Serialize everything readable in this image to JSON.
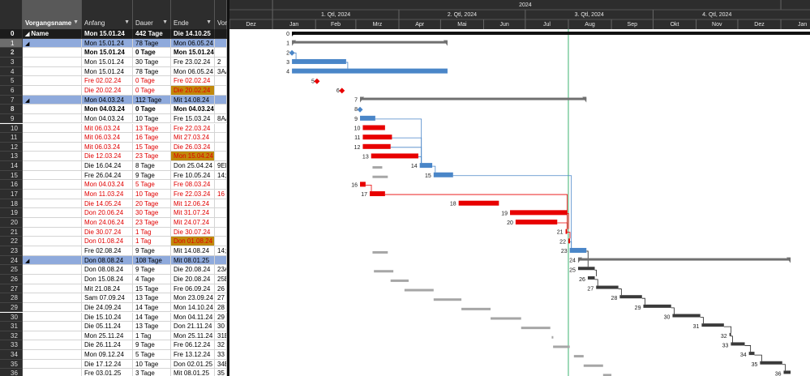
{
  "grid": {
    "columns": {
      "id": "",
      "name": "Vorgangsname",
      "start": "Anfang",
      "duration": "Dauer",
      "end": "Ende",
      "pred": "Vor"
    },
    "rows": [
      {
        "id": "0",
        "name": "Name",
        "start": "Mon 15.01.24",
        "duration": "442 Tage",
        "end": "Die 14.10.25",
        "pred": "",
        "style": "top"
      },
      {
        "id": "1",
        "name": "",
        "start": "Mon 15.01.24",
        "duration": "78 Tage",
        "end": "Mon 06.05.24",
        "pred": "",
        "style": "sum sel"
      },
      {
        "id": "2",
        "name": "",
        "start": "Mon 15.01.24",
        "duration": "0 Tage",
        "end": "Mon 15.01.24",
        "pred": "",
        "style": "bold"
      },
      {
        "id": "3",
        "name": "",
        "start": "Mon 15.01.24",
        "duration": "30 Tage",
        "end": "Fre 23.02.24",
        "pred": "2",
        "style": ""
      },
      {
        "id": "4",
        "name": "",
        "start": "Mon 15.01.24",
        "duration": "78 Tage",
        "end": "Mon 06.05.24",
        "pred": "3AA",
        "style": ""
      },
      {
        "id": "5",
        "name": "",
        "start": "Fre 02.02.24",
        "duration": "0 Tage",
        "end": "Fre 02.02.24",
        "pred": "",
        "style": "red"
      },
      {
        "id": "6",
        "name": "",
        "start": "Die 20.02.24",
        "duration": "0 Tage",
        "end": "Die 20.02.24",
        "pred": "",
        "style": "red",
        "hl": true
      },
      {
        "id": "7",
        "name": "",
        "start": "Mon 04.03.24",
        "duration": "112 Tage",
        "end": "Mit 14.08.24",
        "pred": "",
        "style": "sum"
      },
      {
        "id": "8",
        "name": "",
        "start": "Mon 04.03.24",
        "duration": "0 Tage",
        "end": "Mon 04.03.24",
        "pred": "",
        "style": "bold"
      },
      {
        "id": "9",
        "name": "",
        "start": "Mon 04.03.24",
        "duration": "10 Tage",
        "end": "Fre 15.03.24",
        "pred": "8AA",
        "style": ""
      },
      {
        "id": "10",
        "name": "",
        "start": "Mit 06.03.24",
        "duration": "13 Tage",
        "end": "Fre 22.03.24",
        "pred": "",
        "style": "red"
      },
      {
        "id": "11",
        "name": "",
        "start": "Mit 06.03.24",
        "duration": "16 Tage",
        "end": "Mit 27.03.24",
        "pred": "",
        "style": "red"
      },
      {
        "id": "12",
        "name": "",
        "start": "Mit 06.03.24",
        "duration": "15 Tage",
        "end": "Die 26.03.24",
        "pred": "",
        "style": "red"
      },
      {
        "id": "13",
        "name": "",
        "start": "Die 12.03.24",
        "duration": "23 Tage",
        "end": "Mon 15.04.24",
        "pred": "",
        "style": "red",
        "hl": true
      },
      {
        "id": "14",
        "name": "",
        "start": "Die 16.04.24",
        "duration": "8 Tage",
        "end": "Don 25.04.24",
        "pred": "9EE",
        "style": ""
      },
      {
        "id": "15",
        "name": "",
        "start": "Fre 26.04.24",
        "duration": "9 Tage",
        "end": "Fre 10.05.24",
        "pred": "14;1",
        "style": ""
      },
      {
        "id": "16",
        "name": "",
        "start": "Mon 04.03.24",
        "duration": "5 Tage",
        "end": "Fre 08.03.24",
        "pred": "",
        "style": "red"
      },
      {
        "id": "17",
        "name": "",
        "start": "Mon 11.03.24",
        "duration": "10 Tage",
        "end": "Fre 22.03.24",
        "pred": "16",
        "style": "red"
      },
      {
        "id": "18",
        "name": "",
        "start": "Die 14.05.24",
        "duration": "20 Tage",
        "end": "Mit 12.06.24",
        "pred": "",
        "style": "red"
      },
      {
        "id": "19",
        "name": "",
        "start": "Don 20.06.24",
        "duration": "30 Tage",
        "end": "Mit 31.07.24",
        "pred": "",
        "style": "red"
      },
      {
        "id": "20",
        "name": "",
        "start": "Mon 24.06.24",
        "duration": "23 Tage",
        "end": "Mit 24.07.24",
        "pred": "",
        "style": "red"
      },
      {
        "id": "21",
        "name": "",
        "start": "Die 30.07.24",
        "duration": "1 Tag",
        "end": "Die 30.07.24",
        "pred": "",
        "style": "red"
      },
      {
        "id": "22",
        "name": "",
        "start": "Don 01.08.24",
        "duration": "1 Tag",
        "end": "Don 01.08.24",
        "pred": "",
        "style": "red",
        "hl": true
      },
      {
        "id": "23",
        "name": "",
        "start": "Fre 02.08.24",
        "duration": "9 Tage",
        "end": "Mit 14.08.24",
        "pred": "14;1",
        "style": ""
      },
      {
        "id": "24",
        "name": "",
        "start": "Don 08.08.24",
        "duration": "108 Tage",
        "end": "Mit 08.01.25",
        "pred": "",
        "style": "sum"
      },
      {
        "id": "25",
        "name": "",
        "start": "Don 08.08.24",
        "duration": "9 Tage",
        "end": "Die 20.08.24",
        "pred": "23A",
        "style": ""
      },
      {
        "id": "26",
        "name": "",
        "start": "Don 15.08.24",
        "duration": "4 Tage",
        "end": "Die 20.08.24",
        "pred": "25E",
        "style": ""
      },
      {
        "id": "27",
        "name": "",
        "start": "Mit 21.08.24",
        "duration": "15 Tage",
        "end": "Fre 06.09.24",
        "pred": "26",
        "style": ""
      },
      {
        "id": "28",
        "name": "",
        "start": "Sam 07.09.24",
        "duration": "13 Tage",
        "end": "Mon 23.09.24",
        "pred": "27",
        "style": ""
      },
      {
        "id": "29",
        "name": "",
        "start": "Die 24.09.24",
        "duration": "14 Tage",
        "end": "Mon 14.10.24",
        "pred": "28",
        "style": ""
      },
      {
        "id": "30",
        "name": "",
        "start": "Die 15.10.24",
        "duration": "14 Tage",
        "end": "Mon 04.11.24",
        "pred": "29",
        "style": ""
      },
      {
        "id": "31",
        "name": "",
        "start": "Die 05.11.24",
        "duration": "13 Tage",
        "end": "Don 21.11.24",
        "pred": "30",
        "style": ""
      },
      {
        "id": "32",
        "name": "",
        "start": "Mon 25.11.24",
        "duration": "1 Tag",
        "end": "Mon 25.11.24",
        "pred": "31E",
        "style": ""
      },
      {
        "id": "33",
        "name": "",
        "start": "Die 26.11.24",
        "duration": "9 Tage",
        "end": "Fre 06.12.24",
        "pred": "32",
        "style": ""
      },
      {
        "id": "34",
        "name": "",
        "start": "Mon 09.12.24",
        "duration": "5 Tage",
        "end": "Fre 13.12.24",
        "pred": "33",
        "style": ""
      },
      {
        "id": "35",
        "name": "",
        "start": "Die 17.12.24",
        "duration": "10 Tage",
        "end": "Don 02.01.25",
        "pred": "34E",
        "style": ""
      },
      {
        "id": "36",
        "name": "",
        "start": "Fre 03.01.25",
        "duration": "3 Tage",
        "end": "Mit 08.01.25",
        "pred": "35",
        "style": ""
      }
    ]
  },
  "timeline": {
    "year": "2024",
    "quarters": [
      "1. Qtl, 2024",
      "2. Qtl, 2024",
      "3. Qtl, 2024",
      "4. Qtl, 2024"
    ],
    "months": [
      "Dez",
      "Jan",
      "Feb",
      "Mrz",
      "Apr",
      "Mai",
      "Jun",
      "Jul",
      "Aug",
      "Sep",
      "Okt",
      "Nov",
      "Dez",
      "Jan"
    ],
    "status_date": "2024-08-01"
  },
  "colors": {
    "critical": "#e80000",
    "normal": "#4a86c8",
    "summary": "#707070",
    "future": "#a6a6a6",
    "dark_task": "#3a3a3a",
    "status_line": "#3cb371",
    "header_bg": "#2d2d2d",
    "summary_row": "#8faadc",
    "highlight": "#c0890c"
  },
  "chart_data": {
    "type": "gantt",
    "timeline_range": [
      "2023-12-01",
      "2025-01-31"
    ],
    "tasks": [
      {
        "id": 0,
        "kind": "project",
        "start": "2024-01-15",
        "end": "2025-10-14"
      },
      {
        "id": 1,
        "kind": "summary",
        "start": "2024-01-15",
        "end": "2024-05-06"
      },
      {
        "id": 2,
        "kind": "milestone",
        "start": "2024-01-15",
        "color": "normal"
      },
      {
        "id": 3,
        "kind": "task",
        "start": "2024-01-15",
        "end": "2024-02-23",
        "color": "normal"
      },
      {
        "id": 4,
        "kind": "task",
        "start": "2024-01-15",
        "end": "2024-05-06",
        "color": "normal"
      },
      {
        "id": 5,
        "kind": "milestone",
        "start": "2024-02-02",
        "color": "critical"
      },
      {
        "id": 6,
        "kind": "milestone",
        "start": "2024-02-20",
        "color": "critical"
      },
      {
        "id": 7,
        "kind": "summary",
        "start": "2024-03-04",
        "end": "2024-08-14"
      },
      {
        "id": 8,
        "kind": "milestone",
        "start": "2024-03-04",
        "color": "normal"
      },
      {
        "id": 9,
        "kind": "task",
        "start": "2024-03-04",
        "end": "2024-03-15",
        "color": "normal"
      },
      {
        "id": 10,
        "kind": "task",
        "start": "2024-03-06",
        "end": "2024-03-22",
        "color": "critical"
      },
      {
        "id": 11,
        "kind": "task",
        "start": "2024-03-06",
        "end": "2024-03-27",
        "color": "critical"
      },
      {
        "id": 12,
        "kind": "task",
        "start": "2024-03-06",
        "end": "2024-03-26",
        "color": "critical"
      },
      {
        "id": 13,
        "kind": "task",
        "start": "2024-03-12",
        "end": "2024-04-15",
        "color": "critical"
      },
      {
        "id": 14,
        "kind": "task",
        "start": "2024-04-16",
        "end": "2024-04-25",
        "color": "normal"
      },
      {
        "id": 15,
        "kind": "task",
        "start": "2024-04-26",
        "end": "2024-05-10",
        "color": "normal"
      },
      {
        "id": 16,
        "kind": "task",
        "start": "2024-03-04",
        "end": "2024-03-08",
        "color": "critical"
      },
      {
        "id": 17,
        "kind": "task",
        "start": "2024-03-11",
        "end": "2024-03-22",
        "color": "critical"
      },
      {
        "id": 18,
        "kind": "task",
        "start": "2024-05-14",
        "end": "2024-06-12",
        "color": "critical"
      },
      {
        "id": 19,
        "kind": "task",
        "start": "2024-06-20",
        "end": "2024-07-31",
        "color": "critical"
      },
      {
        "id": 20,
        "kind": "task",
        "start": "2024-06-24",
        "end": "2024-07-24",
        "color": "critical"
      },
      {
        "id": 21,
        "kind": "task",
        "start": "2024-07-30",
        "end": "2024-07-31",
        "color": "critical"
      },
      {
        "id": 22,
        "kind": "task",
        "start": "2024-08-01",
        "end": "2024-08-02",
        "color": "critical"
      },
      {
        "id": 23,
        "kind": "task",
        "start": "2024-08-02",
        "end": "2024-08-14",
        "color": "normal"
      },
      {
        "id": 24,
        "kind": "summary",
        "start": "2024-08-08",
        "end": "2025-01-08"
      },
      {
        "id": 25,
        "kind": "task",
        "start": "2024-08-08",
        "end": "2024-08-20",
        "color": "dark_task"
      },
      {
        "id": 26,
        "kind": "task",
        "start": "2024-08-15",
        "end": "2024-08-20",
        "color": "dark_task"
      },
      {
        "id": 27,
        "kind": "task",
        "start": "2024-08-21",
        "end": "2024-09-06",
        "color": "dark_task"
      },
      {
        "id": 28,
        "kind": "task",
        "start": "2024-09-07",
        "end": "2024-09-23",
        "color": "dark_task"
      },
      {
        "id": 29,
        "kind": "task",
        "start": "2024-09-24",
        "end": "2024-10-14",
        "color": "dark_task"
      },
      {
        "id": 30,
        "kind": "task",
        "start": "2024-10-15",
        "end": "2024-11-04",
        "color": "dark_task"
      },
      {
        "id": 31,
        "kind": "task",
        "start": "2024-11-05",
        "end": "2024-11-21",
        "color": "dark_task"
      },
      {
        "id": 32,
        "kind": "task",
        "start": "2024-11-25",
        "end": "2024-11-26",
        "color": "dark_task"
      },
      {
        "id": 33,
        "kind": "task",
        "start": "2024-11-26",
        "end": "2024-12-06",
        "color": "dark_task"
      },
      {
        "id": 34,
        "kind": "task",
        "start": "2024-12-09",
        "end": "2024-12-13",
        "color": "dark_task"
      },
      {
        "id": 35,
        "kind": "task",
        "start": "2024-12-17",
        "end": "2025-01-02",
        "color": "dark_task"
      },
      {
        "id": 36,
        "kind": "task",
        "start": "2025-01-03",
        "end": "2025-01-08",
        "color": "dark_task"
      }
    ],
    "baselines": [
      {
        "id": 14,
        "start": "2024-03-13",
        "end": "2024-03-20"
      },
      {
        "id": 15,
        "start": "2024-03-13",
        "end": "2024-03-24"
      },
      {
        "id": 23,
        "start": "2024-03-13",
        "end": "2024-03-24"
      },
      {
        "id": 25,
        "start": "2024-03-14",
        "end": "2024-03-28"
      },
      {
        "id": 26,
        "start": "2024-03-26",
        "end": "2024-04-08"
      },
      {
        "id": 27,
        "start": "2024-04-05",
        "end": "2024-04-26"
      },
      {
        "id": 28,
        "start": "2024-04-26",
        "end": "2024-05-16"
      },
      {
        "id": 29,
        "start": "2024-05-16",
        "end": "2024-06-06"
      },
      {
        "id": 30,
        "start": "2024-06-06",
        "end": "2024-06-28"
      },
      {
        "id": 31,
        "start": "2024-06-28",
        "end": "2024-07-19"
      },
      {
        "id": 32,
        "start": "2024-07-20",
        "end": "2024-07-21"
      },
      {
        "id": 33,
        "start": "2024-07-21",
        "end": "2024-08-02"
      },
      {
        "id": 34,
        "start": "2024-08-05",
        "end": "2024-08-12"
      },
      {
        "id": 35,
        "start": "2024-08-12",
        "end": "2024-08-26"
      },
      {
        "id": 36,
        "start": "2024-08-26",
        "end": "2024-09-01"
      }
    ],
    "links": [
      [
        2,
        3
      ],
      [
        3,
        4
      ],
      [
        9,
        14
      ],
      [
        14,
        15
      ],
      [
        13,
        14
      ],
      [
        11,
        14
      ],
      [
        12,
        14
      ],
      [
        16,
        17
      ],
      [
        17,
        21
      ],
      [
        19,
        21
      ],
      [
        20,
        21
      ],
      [
        21,
        22
      ],
      [
        22,
        23
      ],
      [
        15,
        23
      ],
      [
        23,
        25
      ],
      [
        25,
        26
      ],
      [
        26,
        27
      ],
      [
        27,
        28
      ],
      [
        28,
        29
      ],
      [
        29,
        30
      ],
      [
        30,
        31
      ],
      [
        31,
        32
      ],
      [
        32,
        33
      ],
      [
        33,
        34
      ],
      [
        34,
        35
      ],
      [
        35,
        36
      ]
    ]
  }
}
